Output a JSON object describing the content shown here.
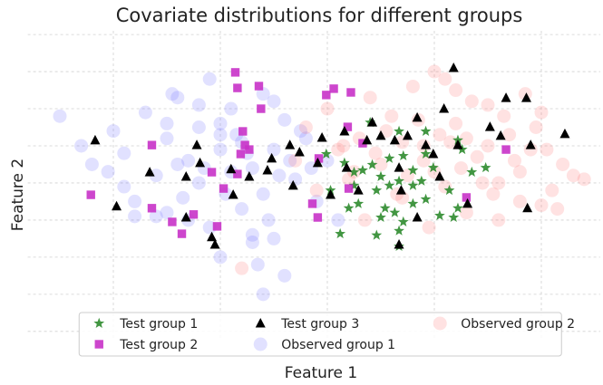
{
  "chart_data": {
    "type": "scatter",
    "title": "Covariate distributions for different groups",
    "xlabel": "Feature 1",
    "ylabel": "Feature 2",
    "xlim": [
      -2.8,
      2.55
    ],
    "ylim": [
      -4.2,
      4.1
    ],
    "xticks": [
      -2,
      -1,
      0,
      1,
      2
    ],
    "yticks": [
      -4,
      -3,
      -2,
      -1,
      0,
      1,
      2,
      3,
      4
    ],
    "tick_labels": false,
    "grid": true,
    "legend": "lower center",
    "legend_ncol": 3,
    "series": [
      {
        "name": "Test group 1",
        "marker": "star",
        "color": "#2e8b2e",
        "opacity": 0.9,
        "x": [
          0.4,
          0.67,
          0.92,
          1.22,
          1.26,
          0.16,
          0.25,
          0.33,
          0.42,
          0.5,
          0.58,
          0.46,
          0.54,
          0.63,
          0.71,
          0.67,
          0.46,
          0.12,
          0.03,
          0.2,
          0.29,
          0.8,
          0.88,
          0.99,
          1.14,
          1.05,
          1.18,
          1.35,
          1.48,
          0.71,
          0.8,
          0.58,
          0.92,
          1.22,
          -0.01,
          0.92,
          0.67,
          0.5,
          0.8,
          0.25,
          0.67
        ],
        "y": [
          1.63,
          1.39,
          1.39,
          1.15,
          0.9,
          0.54,
          0.29,
          0.34,
          0.49,
          0.17,
          -0.07,
          -0.2,
          -0.68,
          -0.8,
          -1.05,
          -1.29,
          -1.41,
          -1.37,
          -0.2,
          -0.68,
          -0.56,
          -0.56,
          0.05,
          0.41,
          -0.2,
          -0.88,
          -0.93,
          0.29,
          0.41,
          0.73,
          0.34,
          0.66,
          -0.44,
          -0.68,
          0.78,
          0.78,
          0.05,
          -0.93,
          -0.07,
          -0.07,
          -1.71
        ]
      },
      {
        "name": "Test group 2",
        "marker": "square",
        "color": "#c832c8",
        "opacity": 0.9,
        "x": [
          -2.21,
          -1.64,
          -1.64,
          -1.45,
          -1.36,
          -1.25,
          -1.08,
          -0.86,
          -0.84,
          -0.64,
          -0.62,
          -0.79,
          -0.77,
          -0.81,
          -0.84,
          -0.73,
          -0.97,
          -1.03,
          -0.14,
          -0.09,
          -0.08,
          -0.01,
          0.06,
          0.19,
          0.22,
          0.33,
          1.67,
          1.3,
          0.2
        ],
        "y": [
          -0.32,
          1.02,
          -0.68,
          -1.05,
          -1.37,
          -0.85,
          0.29,
          2.98,
          2.56,
          2.61,
          2.0,
          1.39,
          1.02,
          0.78,
          0.24,
          0.9,
          -0.15,
          -1.17,
          -0.56,
          -0.93,
          0.66,
          2.37,
          2.54,
          1.51,
          2.44,
          1.07,
          0.9,
          -0.39,
          -0.15
        ]
      },
      {
        "name": "Test group 3",
        "marker": "triangle",
        "color": "#000000",
        "opacity": 1,
        "x": [
          -2.17,
          -1.97,
          -1.66,
          -1.32,
          -1.19,
          -1.08,
          -1.05,
          -1.32,
          -1.22,
          -0.9,
          -0.88,
          -0.73,
          -0.56,
          -0.52,
          -0.35,
          -0.32,
          -0.26,
          -0.09,
          -0.05,
          0.03,
          0.16,
          0.18,
          0.29,
          0.37,
          0.42,
          0.5,
          0.63,
          0.67,
          0.75,
          0.84,
          0.92,
          0.99,
          1.09,
          1.05,
          1.18,
          1.22,
          1.31,
          1.52,
          1.62,
          1.67,
          1.86,
          1.9,
          2.22,
          1.87,
          0.84,
          0.67,
          0.69
        ],
        "y": [
          1.15,
          -0.63,
          0.29,
          0.17,
          0.54,
          -1.46,
          -1.66,
          -0.93,
          1.02,
          0.37,
          -0.32,
          0.17,
          0.34,
          0.66,
          1.02,
          -0.07,
          0.83,
          0.54,
          1.22,
          -0.32,
          1.39,
          0.41,
          -0.2,
          1.15,
          1.63,
          1.27,
          1.15,
          0.41,
          1.27,
          1.76,
          1.02,
          0.78,
          2.0,
          0.17,
          3.1,
          1.02,
          -0.56,
          1.51,
          1.27,
          2.29,
          2.29,
          1.02,
          1.32,
          -0.68,
          -0.93,
          -1.66,
          -0.2
        ]
      },
      {
        "name": "Observed group 1",
        "marker": "circle",
        "color": "#6a6aff",
        "opacity": 0.2,
        "x": [
          -2.5,
          -2.2,
          -2.0,
          -1.9,
          -1.8,
          -1.7,
          -1.6,
          -1.5,
          -1.5,
          -1.4,
          -1.3,
          -1.3,
          -1.2,
          -1.2,
          -1.1,
          -1.1,
          -1.0,
          -1.0,
          -1.0,
          -0.9,
          -0.9,
          -0.8,
          -0.8,
          -0.7,
          -0.7,
          -0.6,
          -0.6,
          -0.5,
          -0.5,
          -0.4,
          -0.4,
          -0.3,
          -0.2,
          -0.1,
          0.0,
          0.1,
          -2.3,
          -1.9,
          -1.6,
          -1.4,
          -1.2,
          -0.95,
          -0.85,
          -0.65,
          -0.45,
          -0.25,
          -1.5,
          -1.15,
          -0.75,
          -0.55,
          -0.35,
          -1.0,
          -0.6,
          -1.8,
          -2.05,
          -1.35,
          -0.5,
          -0.15,
          -1.45,
          -0.7
        ],
        "y": [
          1.8,
          0.5,
          1.4,
          0.8,
          -0.5,
          1.9,
          0.2,
          1.2,
          -0.8,
          2.3,
          0.6,
          -1.0,
          1.5,
          0.0,
          2.8,
          -1.2,
          0.9,
          -2.0,
          1.6,
          0.3,
          2.0,
          -0.7,
          1.1,
          0.4,
          -1.4,
          2.4,
          -0.3,
          0.9,
          -1.5,
          1.7,
          -2.5,
          0.1,
          1.2,
          -0.5,
          0.6,
          -1.0,
          1.0,
          -0.1,
          -0.9,
          0.5,
          2.1,
          -0.3,
          1.3,
          -2.2,
          0.2,
          1.4,
          1.6,
          0.4,
          0.8,
          -1.0,
          0.6,
          1.3,
          -3.0,
          -0.9,
          0.3,
          -0.4,
          2.2,
          0.4,
          2.4,
          -1.6
        ]
      },
      {
        "name": "Observed group 2",
        "marker": "circle",
        "color": "#ff7070",
        "opacity": 0.2,
        "x": [
          -0.3,
          -0.2,
          -0.1,
          0.0,
          0.1,
          0.2,
          0.3,
          0.4,
          0.5,
          0.6,
          0.7,
          0.8,
          0.9,
          1.0,
          1.1,
          1.2,
          1.3,
          1.4,
          1.5,
          1.6,
          1.7,
          1.8,
          1.9,
          2.0,
          2.1,
          2.2,
          2.3,
          0.35,
          0.55,
          0.75,
          0.95,
          1.15,
          1.35,
          1.55,
          1.75,
          1.95,
          2.15,
          0.45,
          0.85,
          1.25,
          1.65,
          2.05,
          0.65,
          1.05,
          1.45,
          1.85,
          0.25,
          0.15,
          1.6,
          2.4,
          -0.8,
          1.0,
          1.3,
          1.8,
          0.9,
          1.1,
          1.5,
          2.0,
          0.7,
          1.2
        ],
        "y": [
          0.6,
          1.5,
          -0.2,
          2.0,
          0.9,
          0.1,
          1.2,
          2.3,
          0.5,
          1.8,
          -0.4,
          2.6,
          1.0,
          0.3,
          2.8,
          1.6,
          -0.8,
          0.7,
          2.1,
          0.0,
          1.3,
          -0.5,
          0.9,
          1.9,
          -0.2,
          0.5,
          0.2,
          -1.0,
          1.4,
          0.2,
          -1.2,
          1.1,
          2.2,
          -0.3,
          0.6,
          1.5,
          -0.7,
          0.8,
          1.7,
          0.4,
          1.8,
          0.9,
          -0.3,
          1.3,
          0.0,
          2.4,
          0.3,
          1.0,
          -1.0,
          0.1,
          -2.3,
          3.0,
          1.2,
          0.3,
          0.6,
          -0.1,
          1.0,
          -0.6,
          1.1,
          2.5
        ]
      }
    ]
  }
}
